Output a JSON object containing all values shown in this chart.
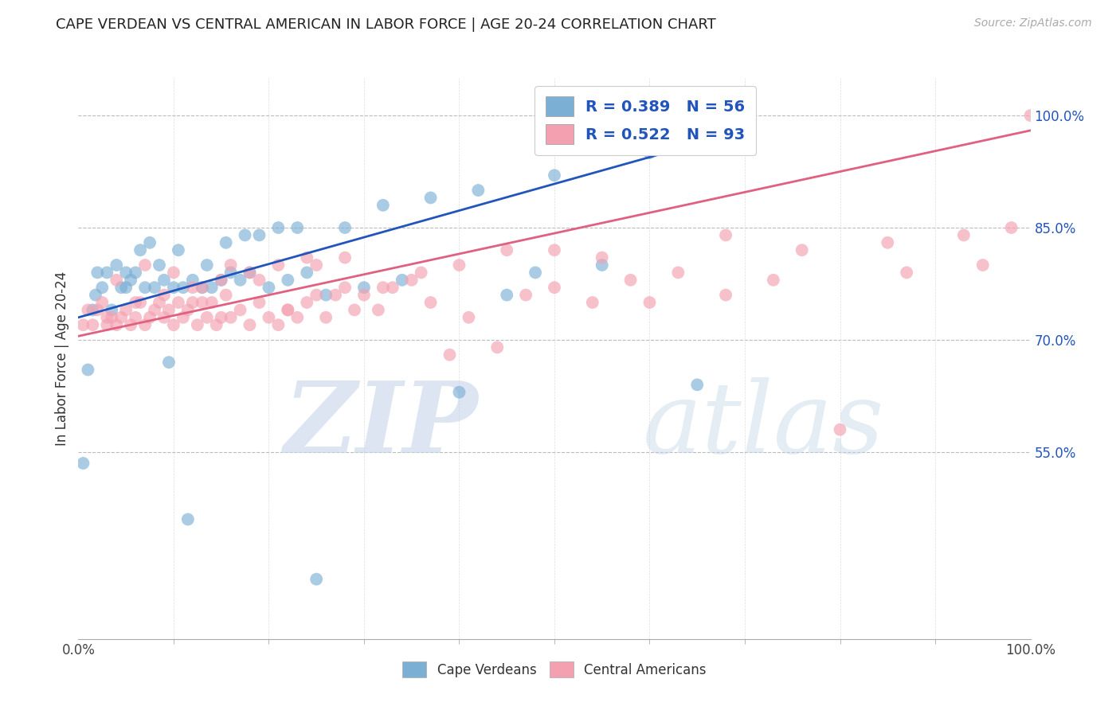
{
  "title": "CAPE VERDEAN VS CENTRAL AMERICAN IN LABOR FORCE | AGE 20-24 CORRELATION CHART",
  "source": "Source: ZipAtlas.com",
  "ylabel": "In Labor Force | Age 20-24",
  "legend_r1": "0.389",
  "legend_n1": "56",
  "legend_r2": "0.522",
  "legend_n2": "93",
  "blue_color": "#7BAFD4",
  "pink_color": "#F4A0B0",
  "line_blue_color": "#2255BB",
  "line_pink_color": "#E06080",
  "text_blue_color": "#2255BB",
  "label_color": "#333344",
  "background": "#FFFFFF",
  "cv_scatter_x": [
    0.5,
    1.5,
    1.8,
    2.5,
    3.5,
    4.5,
    5.0,
    5.5,
    6.0,
    7.0,
    8.0,
    9.0,
    10.0,
    11.0,
    12.0,
    13.0,
    14.0,
    15.0,
    16.0,
    17.0,
    18.0,
    20.0,
    22.0,
    24.0,
    26.0,
    30.0,
    34.0,
    40.0,
    45.0,
    48.0,
    55.0,
    65.0,
    1.0,
    2.0,
    3.0,
    4.0,
    5.0,
    6.5,
    7.5,
    8.5,
    9.5,
    10.5,
    11.5,
    13.5,
    15.5,
    17.5,
    19.0,
    21.0,
    23.0,
    25.0,
    28.0,
    32.0,
    37.0,
    42.0,
    50.0,
    60.0
  ],
  "cv_scatter_y": [
    53.5,
    74.0,
    76.0,
    77.0,
    74.0,
    77.0,
    77.0,
    78.0,
    79.0,
    77.0,
    77.0,
    78.0,
    77.0,
    77.0,
    78.0,
    77.0,
    77.0,
    78.0,
    79.0,
    78.0,
    79.0,
    77.0,
    78.0,
    79.0,
    76.0,
    77.0,
    78.0,
    63.0,
    76.0,
    79.0,
    80.0,
    64.0,
    66.0,
    79.0,
    79.0,
    80.0,
    79.0,
    82.0,
    83.0,
    80.0,
    67.0,
    82.0,
    46.0,
    80.0,
    83.0,
    84.0,
    84.0,
    85.0,
    85.0,
    38.0,
    85.0,
    88.0,
    89.0,
    90.0,
    92.0,
    95.0
  ],
  "ca_scatter_x": [
    0.5,
    1.0,
    1.5,
    2.0,
    2.5,
    3.0,
    3.5,
    4.0,
    4.5,
    5.0,
    5.5,
    6.0,
    6.5,
    7.0,
    7.5,
    8.0,
    8.5,
    9.0,
    9.5,
    10.0,
    10.5,
    11.0,
    11.5,
    12.0,
    12.5,
    13.0,
    13.5,
    14.0,
    14.5,
    15.0,
    15.5,
    16.0,
    17.0,
    18.0,
    19.0,
    20.0,
    21.0,
    22.0,
    23.0,
    24.0,
    25.0,
    26.0,
    27.0,
    28.0,
    29.0,
    30.0,
    31.5,
    33.0,
    35.0,
    37.0,
    39.0,
    41.0,
    44.0,
    47.0,
    50.0,
    54.0,
    58.0,
    63.0,
    68.0,
    73.0,
    80.0,
    87.0,
    95.0,
    4.0,
    7.0,
    10.0,
    13.0,
    16.0,
    19.0,
    22.0,
    25.0,
    28.0,
    32.0,
    36.0,
    40.0,
    45.0,
    50.0,
    55.0,
    60.0,
    68.0,
    76.0,
    85.0,
    93.0,
    98.0,
    100.0,
    3.0,
    6.0,
    9.0,
    12.0,
    15.0,
    18.0,
    21.0,
    24.0
  ],
  "ca_scatter_y": [
    72.0,
    74.0,
    72.0,
    74.0,
    75.0,
    72.0,
    73.0,
    72.0,
    73.0,
    74.0,
    72.0,
    73.0,
    75.0,
    72.0,
    73.0,
    74.0,
    75.0,
    73.0,
    74.0,
    72.0,
    75.0,
    73.0,
    74.0,
    75.0,
    72.0,
    75.0,
    73.0,
    75.0,
    72.0,
    73.0,
    76.0,
    73.0,
    74.0,
    72.0,
    75.0,
    73.0,
    72.0,
    74.0,
    73.0,
    75.0,
    76.0,
    73.0,
    76.0,
    77.0,
    74.0,
    76.0,
    74.0,
    77.0,
    78.0,
    75.0,
    68.0,
    73.0,
    69.0,
    76.0,
    77.0,
    75.0,
    78.0,
    79.0,
    76.0,
    78.0,
    58.0,
    79.0,
    80.0,
    78.0,
    80.0,
    79.0,
    77.0,
    80.0,
    78.0,
    74.0,
    80.0,
    81.0,
    77.0,
    79.0,
    80.0,
    82.0,
    82.0,
    81.0,
    75.0,
    84.0,
    82.0,
    83.0,
    84.0,
    85.0,
    100.0,
    73.0,
    75.0,
    76.0,
    77.0,
    78.0,
    79.0,
    80.0,
    81.0
  ],
  "blue_line_x": [
    0.0,
    70.0
  ],
  "blue_line_y": [
    73.0,
    98.0
  ],
  "pink_line_x": [
    0.0,
    100.0
  ],
  "pink_line_y": [
    70.5,
    98.0
  ],
  "xlim": [
    0,
    100
  ],
  "ylim": [
    30,
    105
  ],
  "yticks": [
    55,
    70,
    85,
    100
  ],
  "ytick_labels": [
    "55.0%",
    "70.0%",
    "85.0%",
    "100.0%"
  ],
  "xtick_positions": [
    0,
    100
  ],
  "xtick_labels": [
    "0.0%",
    "100.0%"
  ]
}
